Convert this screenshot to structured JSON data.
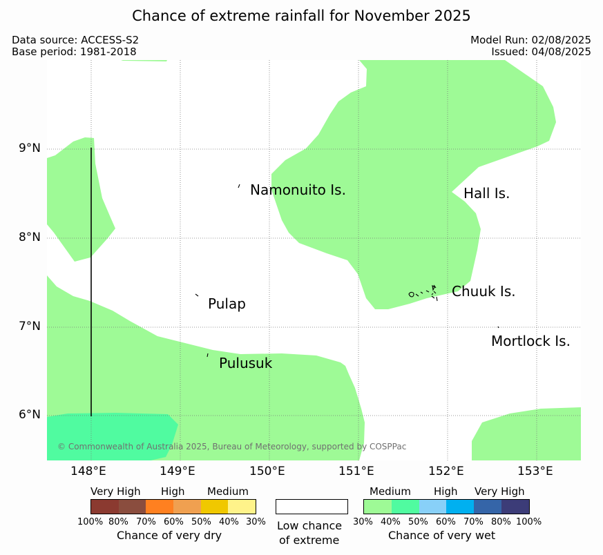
{
  "title": "Chance of extreme rainfall for November 2025",
  "data_source": "Data source: ACCESS-S2",
  "base_period": "Base period: 1981-2018",
  "model_run": "Model Run: 02/08/2025",
  "issued": "Issued: 04/08/2025",
  "copyright": "© Commonwealth of Australia 2025, Bureau of Meteorology, supported by COSPPac",
  "map": {
    "lat_ticks": [
      "9°N",
      "8°N",
      "7°N",
      "6°N"
    ],
    "lon_ticks": [
      "148°E",
      "149°E",
      "150°E",
      "151°E",
      "152°E",
      "153°E"
    ],
    "places": [
      "Namonuito Is.",
      "Hall Is.",
      "Pulap",
      "Chuuk Is.",
      "Mortlock Is.",
      "Pulusuk"
    ]
  },
  "legend": {
    "dry": {
      "categories": [
        "Very High",
        "High",
        "Medium"
      ],
      "percentages": [
        "100%",
        "80%",
        "70%",
        "60%",
        "50%",
        "40%",
        "30%"
      ],
      "title": "Chance of very dry",
      "colors": [
        "#8b3a30",
        "#8a4d3e",
        "#ff8020",
        "#f0a050",
        "#f0c800",
        "#fff38a"
      ]
    },
    "low": {
      "line1": "Low chance",
      "line2": "of extreme",
      "color": "#ffffff"
    },
    "wet": {
      "categories": [
        "Medium",
        "High",
        "Very High"
      ],
      "percentages": [
        "30%",
        "40%",
        "50%",
        "60%",
        "70%",
        "80%",
        "100%"
      ],
      "title": "Chance of very wet",
      "colors": [
        "#9efa96",
        "#50fba0",
        "#88d0f8",
        "#00b0f0",
        "#3565a8",
        "#3c3c78"
      ]
    }
  }
}
